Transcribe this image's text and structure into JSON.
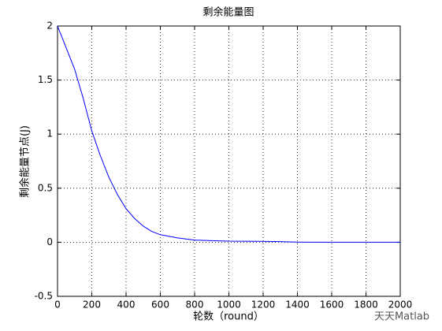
{
  "chart_data": {
    "type": "line",
    "title": "剩余能量图",
    "x_label": "轮数（round）",
    "y_label": "剩余能量节点(J)",
    "watermark": "天天Matlab",
    "x": [
      0,
      50,
      100,
      150,
      200,
      250,
      300,
      350,
      400,
      450,
      500,
      550,
      600,
      700,
      800,
      900,
      1000,
      1200,
      1300,
      1400,
      1600,
      2000
    ],
    "series": [
      {
        "name": "剩余能量",
        "color": "#0000ff",
        "values": [
          2,
          1.8,
          1.6,
          1.33,
          1.03,
          0.8,
          0.6,
          0.44,
          0.31,
          0.22,
          0.15,
          0.1,
          0.07,
          0.04,
          0.02,
          0.015,
          0.01,
          0.008,
          0.006,
          0.001,
          0,
          0
        ]
      }
    ],
    "xlim": [
      0,
      2000
    ],
    "xticks": [
      0,
      200,
      400,
      600,
      800,
      1000,
      1200,
      1400,
      1600,
      1800,
      2000
    ],
    "ylim": [
      -0.5,
      2
    ],
    "yticks": [
      -0.5,
      0,
      0.5,
      1,
      1.5,
      2
    ],
    "grid": true
  }
}
